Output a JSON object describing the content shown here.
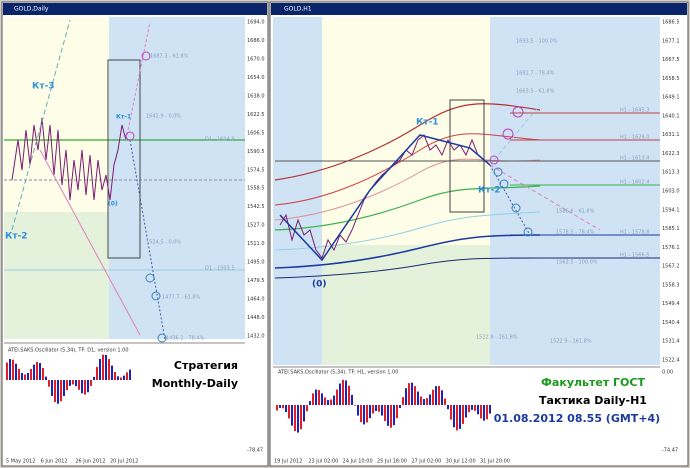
{
  "left_window": {
    "title": "GOLD,Daily",
    "price_axis": [
      "1694.0",
      "1686.0",
      "1670.0",
      "1654.0",
      "1638.0",
      "1622.5",
      "1606.5",
      "1590.5",
      "1574.5",
      "1558.5",
      "1542.5",
      "1527.0",
      "1511.0",
      "1495.0",
      "1479.5",
      "1464.0",
      "1448.0",
      "1432.0"
    ],
    "date_axis": [
      "5 May 2012",
      "6 Jun 2012",
      "26 Jun 2012",
      "20 Jul 2012"
    ],
    "labels": [
      "Кт-3",
      "Кт-2",
      "Кт-1",
      "(0)"
    ],
    "levels": [
      "1687.3 - 61.8%",
      "1642.9 - 0.0%",
      "D1 - 1614.9",
      "1524.5 - 0.0%",
      "D1 - 1503.5",
      "1477.7 - 61.8%",
      "1436.2 - 78.4%"
    ],
    "indicator_title": "ATEI.SAKS.Oscillator (5,34), TF: D1, version 1.00",
    "indicator_axis": [
      "-78.47"
    ],
    "caption": [
      "Стратегия",
      "Monthly-Daily"
    ]
  },
  "right_window": {
    "title": "GOLD,H1",
    "price_axis": [
      "1686.5",
      "1677.1",
      "1667.5",
      "1658.5",
      "1649.1",
      "1640.1",
      "1631.1",
      "1622.3",
      "1613.3",
      "1603.0",
      "1594.1",
      "1585.1",
      "1576.1",
      "1567.2",
      "1558.3",
      "1549.4",
      "1540.4",
      "1531.4",
      "1522.4"
    ],
    "date_axis": [
      "19 Jul 2012",
      "23 Jul 02:00",
      "24 Jul 10:00",
      "25 Jul 18:00",
      "27 Jul 02:00",
      "30 Jul 12:00",
      "31 Jul 20:00"
    ],
    "labels": [
      "Кт-1",
      "Кт-2",
      "(0)"
    ],
    "levels": [
      "1693.5 - 100.0%",
      "1681.7 - 78.4%",
      "1663.5 - 61.8%",
      "H1 - 1645.3",
      "H1 - 1628.0",
      "H1 - 1613.4",
      "H1 - 1602.4",
      "1586.6 - 61.8%",
      "H1 - 1578.8",
      "1578.5 - 78.4%",
      "H1 - 1566.5",
      "1563.5 - 100.0%",
      "1522.9 - 161.8%",
      "1522.9 - 161.8%"
    ],
    "indicator_title": "ATEI.SAKS.Oscillator (5,34), TF: H1, version 1.00",
    "indicator_axis": [
      "0.00",
      "-74.47"
    ],
    "caption": [
      "Факультет ГОСТ",
      "Тактика Daily-H1",
      "01.08.2012   08.55 (GMT+4)"
    ]
  }
}
